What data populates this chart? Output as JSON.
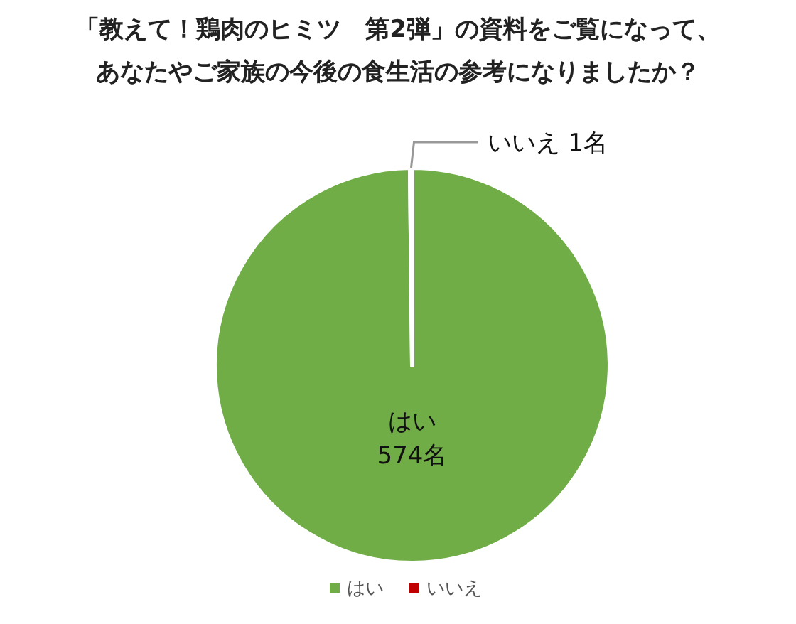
{
  "chart_data": {
    "type": "pie",
    "title": "「教えて！鶏肉のヒミツ　第2弾」の資料をご覧になって、あなたやご家族の今後の食生活の参考になりましたか？",
    "categories": [
      "はい",
      "いいえ"
    ],
    "values": [
      574,
      1
    ],
    "colors": [
      "#70ad47",
      "#c00000"
    ],
    "value_labels": [
      "574名",
      "1名"
    ],
    "legend": "bottom"
  }
}
